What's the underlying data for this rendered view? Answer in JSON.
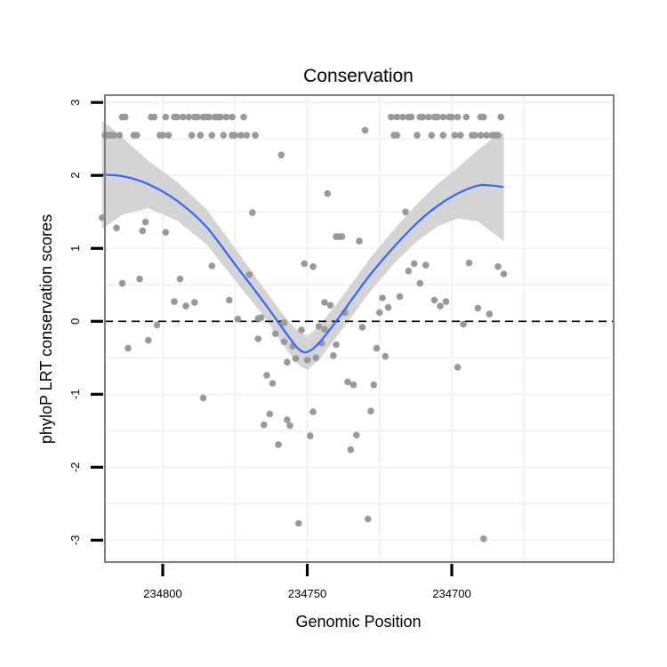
{
  "chart_data": {
    "type": "scatter",
    "title": "Conservation",
    "xlabel": "Genomic Position",
    "ylabel": "phyloP LRT conservation scores",
    "x_reversed": true,
    "xlim": [
      234820,
      234644
    ],
    "ylim": [
      -3.3,
      3.1
    ],
    "x_ticks": [
      234800,
      234750,
      234700
    ],
    "x_tick_labels": [
      "234800",
      "234750",
      "234700"
    ],
    "y_ticks": [
      -3,
      -2,
      -1,
      0,
      1,
      2,
      3
    ],
    "y_tick_labels": [
      "-3",
      "-2",
      "-1",
      "0",
      "1",
      "2",
      "3"
    ],
    "grid": true,
    "reference_line": {
      "y": 0,
      "style": "dashed",
      "color": "#000000"
    },
    "point_color": "#999999",
    "smooth_color": "#3366ff",
    "band_color": "#d4d4d4",
    "points": [
      {
        "x": 234821,
        "y": 1.42
      },
      {
        "x": 234820,
        "y": 2.55
      },
      {
        "x": 234819,
        "y": 2.55
      },
      {
        "x": 234818,
        "y": 2.55
      },
      {
        "x": 234817,
        "y": 2.55
      },
      {
        "x": 234816,
        "y": 1.28
      },
      {
        "x": 234815,
        "y": 2.55
      },
      {
        "x": 234814,
        "y": 2.8
      },
      {
        "x": 234814,
        "y": 0.52
      },
      {
        "x": 234813,
        "y": 2.8
      },
      {
        "x": 234812,
        "y": -0.37
      },
      {
        "x": 234810,
        "y": 2.55
      },
      {
        "x": 234809,
        "y": 2.55
      },
      {
        "x": 234808,
        "y": 0.58
      },
      {
        "x": 234807,
        "y": 1.24
      },
      {
        "x": 234806,
        "y": 1.36
      },
      {
        "x": 234805,
        "y": -0.26
      },
      {
        "x": 234804,
        "y": 2.8
      },
      {
        "x": 234803,
        "y": 2.8
      },
      {
        "x": 234802,
        "y": -0.05
      },
      {
        "x": 234801,
        "y": 2.55
      },
      {
        "x": 234800,
        "y": 2.55
      },
      {
        "x": 234799,
        "y": 1.22
      },
      {
        "x": 234799,
        "y": 2.8
      },
      {
        "x": 234798,
        "y": 2.55
      },
      {
        "x": 234796,
        "y": 0.27
      },
      {
        "x": 234796,
        "y": 2.8
      },
      {
        "x": 234795,
        "y": 2.8
      },
      {
        "x": 234794,
        "y": 0.58
      },
      {
        "x": 234793,
        "y": 2.8
      },
      {
        "x": 234792,
        "y": 0.21
      },
      {
        "x": 234791,
        "y": 2.8
      },
      {
        "x": 234790,
        "y": 2.55
      },
      {
        "x": 234789,
        "y": 2.8
      },
      {
        "x": 234789,
        "y": 0.26
      },
      {
        "x": 234788,
        "y": 2.8
      },
      {
        "x": 234787,
        "y": 2.55
      },
      {
        "x": 234786,
        "y": -1.05
      },
      {
        "x": 234786,
        "y": 2.8
      },
      {
        "x": 234785,
        "y": 2.8
      },
      {
        "x": 234784,
        "y": 2.8
      },
      {
        "x": 234783,
        "y": 0.76
      },
      {
        "x": 234783,
        "y": 2.55
      },
      {
        "x": 234782,
        "y": 2.8
      },
      {
        "x": 234781,
        "y": 2.8
      },
      {
        "x": 234780,
        "y": 2.8
      },
      {
        "x": 234779,
        "y": 2.55
      },
      {
        "x": 234778,
        "y": 2.8
      },
      {
        "x": 234777,
        "y": 0.29
      },
      {
        "x": 234776,
        "y": 2.8
      },
      {
        "x": 234776,
        "y": 2.55
      },
      {
        "x": 234775,
        "y": 2.55
      },
      {
        "x": 234774,
        "y": 0.03
      },
      {
        "x": 234773,
        "y": 2.55
      },
      {
        "x": 234772,
        "y": 2.8
      },
      {
        "x": 234771,
        "y": 2.55
      },
      {
        "x": 234770,
        "y": 0.64
      },
      {
        "x": 234769,
        "y": 1.49
      },
      {
        "x": 234768,
        "y": 2.55
      },
      {
        "x": 234767,
        "y": 0.04
      },
      {
        "x": 234767,
        "y": -0.24
      },
      {
        "x": 234766,
        "y": 0.05
      },
      {
        "x": 234765,
        "y": -1.42
      },
      {
        "x": 234764,
        "y": -0.74
      },
      {
        "x": 234763,
        "y": -1.27
      },
      {
        "x": 234762,
        "y": -0.85
      },
      {
        "x": 234761,
        "y": -0.17
      },
      {
        "x": 234760,
        "y": -1.69
      },
      {
        "x": 234759,
        "y": 2.28
      },
      {
        "x": 234758,
        "y": -0.28
      },
      {
        "x": 234758,
        "y": -0.02
      },
      {
        "x": 234757,
        "y": -1.35
      },
      {
        "x": 234757,
        "y": -0.56
      },
      {
        "x": 234756,
        "y": -1.43
      },
      {
        "x": 234755,
        "y": -0.34
      },
      {
        "x": 234754,
        "y": -0.51
      },
      {
        "x": 234753,
        "y": -2.77
      },
      {
        "x": 234752,
        "y": -0.12
      },
      {
        "x": 234751,
        "y": 0.79
      },
      {
        "x": 234750,
        "y": -0.53
      },
      {
        "x": 234749,
        "y": -1.57
      },
      {
        "x": 234748,
        "y": -1.24
      },
      {
        "x": 234748,
        "y": 0.75
      },
      {
        "x": 234747,
        "y": -0.5
      },
      {
        "x": 234746,
        "y": -0.07
      },
      {
        "x": 234745,
        "y": -0.3
      },
      {
        "x": 234744,
        "y": 0.26
      },
      {
        "x": 234744,
        "y": -0.11
      },
      {
        "x": 234743,
        "y": 1.75
      },
      {
        "x": 234742,
        "y": 0.22
      },
      {
        "x": 234741,
        "y": -0.47
      },
      {
        "x": 234740,
        "y": 1.16
      },
      {
        "x": 234740,
        "y": -0.32
      },
      {
        "x": 234739,
        "y": 1.16
      },
      {
        "x": 234738,
        "y": 1.16
      },
      {
        "x": 234737,
        "y": 0.12
      },
      {
        "x": 234736,
        "y": -0.83
      },
      {
        "x": 234735,
        "y": -1.76
      },
      {
        "x": 234734,
        "y": -0.87
      },
      {
        "x": 234733,
        "y": -1.56
      },
      {
        "x": 234732,
        "y": 1.1
      },
      {
        "x": 234731,
        "y": -0.08
      },
      {
        "x": 234730,
        "y": 2.62
      },
      {
        "x": 234729,
        "y": -2.71
      },
      {
        "x": 234728,
        "y": -1.23
      },
      {
        "x": 234727,
        "y": -0.87
      },
      {
        "x": 234726,
        "y": -0.37
      },
      {
        "x": 234725,
        "y": 0.12
      },
      {
        "x": 234724,
        "y": 0.32
      },
      {
        "x": 234723,
        "y": -0.48
      },
      {
        "x": 234722,
        "y": 0.19
      },
      {
        "x": 234721,
        "y": 2.8
      },
      {
        "x": 234720,
        "y": 2.55
      },
      {
        "x": 234719,
        "y": 2.8
      },
      {
        "x": 234719,
        "y": 2.55
      },
      {
        "x": 234718,
        "y": 0.34
      },
      {
        "x": 234717,
        "y": 2.8
      },
      {
        "x": 234716,
        "y": 1.5
      },
      {
        "x": 234715,
        "y": 2.8
      },
      {
        "x": 234715,
        "y": 0.69
      },
      {
        "x": 234714,
        "y": 2.8
      },
      {
        "x": 234713,
        "y": 0.79
      },
      {
        "x": 234712,
        "y": 2.55
      },
      {
        "x": 234711,
        "y": 0.52
      },
      {
        "x": 234711,
        "y": 2.8
      },
      {
        "x": 234710,
        "y": 2.8
      },
      {
        "x": 234709,
        "y": 0.77
      },
      {
        "x": 234708,
        "y": 2.8
      },
      {
        "x": 234707,
        "y": 2.55
      },
      {
        "x": 234706,
        "y": 2.8
      },
      {
        "x": 234706,
        "y": 0.29
      },
      {
        "x": 234705,
        "y": 2.8
      },
      {
        "x": 234704,
        "y": 0.21
      },
      {
        "x": 234703,
        "y": 2.8
      },
      {
        "x": 234703,
        "y": 2.55
      },
      {
        "x": 234702,
        "y": 0.27
      },
      {
        "x": 234701,
        "y": 2.8
      },
      {
        "x": 234700,
        "y": 2.8
      },
      {
        "x": 234699,
        "y": 2.55
      },
      {
        "x": 234698,
        "y": 2.8
      },
      {
        "x": 234698,
        "y": -0.63
      },
      {
        "x": 234697,
        "y": 2.55
      },
      {
        "x": 234696,
        "y": -0.04
      },
      {
        "x": 234695,
        "y": 2.8
      },
      {
        "x": 234694,
        "y": 0.8
      },
      {
        "x": 234693,
        "y": 2.55
      },
      {
        "x": 234692,
        "y": 2.55
      },
      {
        "x": 234691,
        "y": 0.18
      },
      {
        "x": 234690,
        "y": 2.8
      },
      {
        "x": 234690,
        "y": 2.55
      },
      {
        "x": 234689,
        "y": -2.98
      },
      {
        "x": 234689,
        "y": 2.8
      },
      {
        "x": 234688,
        "y": 2.55
      },
      {
        "x": 234687,
        "y": 0.1
      },
      {
        "x": 234686,
        "y": 2.55
      },
      {
        "x": 234685,
        "y": 2.55
      },
      {
        "x": 234684,
        "y": 0.75
      },
      {
        "x": 234684,
        "y": 2.55
      },
      {
        "x": 234683,
        "y": 2.8
      },
      {
        "x": 234682,
        "y": 0.65
      }
    ],
    "smooth": {
      "x": [
        234821,
        234814,
        234805,
        234795,
        234785,
        234775,
        234765,
        234757,
        234753,
        234750,
        234746,
        234740,
        234734,
        234728,
        234720,
        234712,
        234705,
        234698,
        234691,
        234686,
        234682
      ],
      "y": [
        2.01,
        1.99,
        1.88,
        1.65,
        1.3,
        0.78,
        0.26,
        -0.18,
        -0.38,
        -0.42,
        -0.3,
        0.0,
        0.33,
        0.65,
        1.02,
        1.35,
        1.58,
        1.75,
        1.86,
        1.86,
        1.84
      ],
      "upper": [
        2.76,
        2.52,
        2.2,
        1.91,
        1.54,
        1.0,
        0.45,
        0.02,
        -0.14,
        -0.2,
        -0.07,
        0.23,
        0.55,
        0.88,
        1.26,
        1.61,
        1.88,
        2.1,
        2.35,
        2.5,
        2.58
      ],
      "lower": [
        1.27,
        1.46,
        1.55,
        1.38,
        1.06,
        0.56,
        0.07,
        -0.4,
        -0.6,
        -0.67,
        -0.53,
        -0.22,
        0.1,
        0.42,
        0.79,
        1.1,
        1.3,
        1.41,
        1.37,
        1.22,
        1.1
      ]
    }
  }
}
